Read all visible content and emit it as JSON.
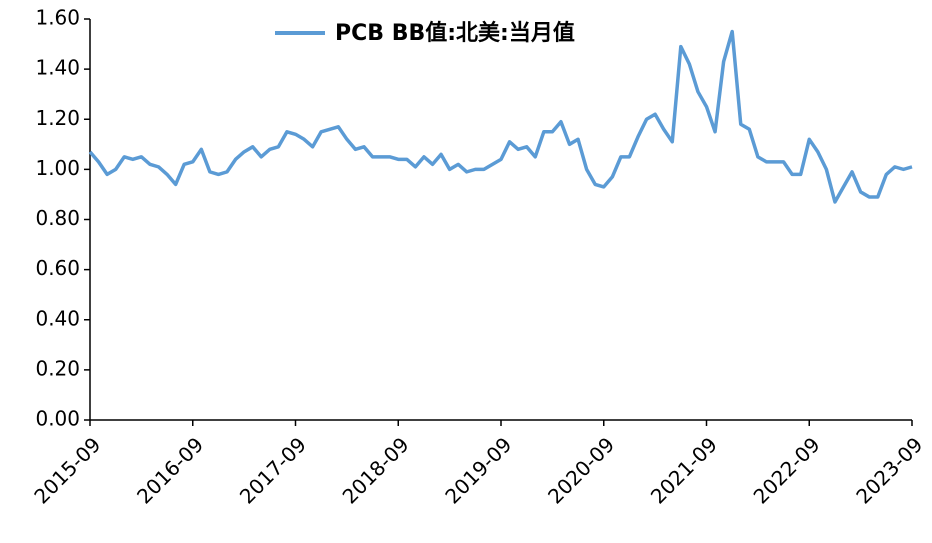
{
  "chart_data": {
    "type": "line",
    "categories": [
      "2015-09",
      null,
      null,
      null,
      null,
      null,
      null,
      null,
      null,
      null,
      null,
      null,
      "2016-09",
      null,
      null,
      null,
      null,
      null,
      null,
      null,
      null,
      null,
      null,
      null,
      "2017-09",
      null,
      null,
      null,
      null,
      null,
      null,
      null,
      null,
      null,
      null,
      null,
      "2018-09",
      null,
      null,
      null,
      null,
      null,
      null,
      null,
      null,
      null,
      null,
      null,
      "2019-09",
      null,
      null,
      null,
      null,
      null,
      null,
      null,
      null,
      null,
      null,
      null,
      "2020-09",
      null,
      null,
      null,
      null,
      null,
      null,
      null,
      null,
      null,
      null,
      null,
      "2021-09",
      null,
      null,
      null,
      null,
      null,
      null,
      null,
      null,
      null,
      null,
      null,
      "2022-09",
      null,
      null,
      null,
      null,
      null,
      null,
      null,
      null,
      null,
      null,
      null,
      "2023-09"
    ],
    "series": [
      {
        "name": "PCB BB值:北美:当月值",
        "color": "#5b9bd5",
        "values": [
          1.07,
          1.03,
          0.98,
          1.0,
          1.05,
          1.04,
          1.05,
          1.02,
          1.01,
          0.98,
          0.94,
          1.02,
          1.03,
          1.08,
          0.99,
          0.98,
          0.99,
          1.04,
          1.07,
          1.09,
          1.05,
          1.08,
          1.09,
          1.15,
          1.14,
          1.12,
          1.09,
          1.15,
          1.16,
          1.17,
          1.12,
          1.08,
          1.09,
          1.05,
          1.05,
          1.05,
          1.04,
          1.04,
          1.01,
          1.05,
          1.02,
          1.06,
          1.0,
          1.02,
          0.99,
          1.0,
          1.0,
          1.02,
          1.04,
          1.11,
          1.08,
          1.09,
          1.05,
          1.15,
          1.15,
          1.19,
          1.1,
          1.12,
          1.0,
          0.94,
          0.93,
          0.97,
          1.05,
          1.05,
          1.13,
          1.2,
          1.22,
          1.16,
          1.11,
          1.49,
          1.42,
          1.31,
          1.25,
          1.15,
          1.43,
          1.55,
          1.18,
          1.16,
          1.05,
          1.03,
          1.03,
          1.03,
          0.98,
          0.98,
          1.12,
          1.07,
          1.0,
          0.87,
          0.93,
          0.99,
          0.91,
          0.89,
          0.89,
          0.98,
          1.01,
          1.0,
          1.01
        ]
      }
    ],
    "ylim": [
      0,
      1.6
    ],
    "yticks": [
      {
        "value": 0,
        "label": "0.00"
      },
      {
        "value": 0.2,
        "label": "0.20"
      },
      {
        "value": 0.4,
        "label": "0.40"
      },
      {
        "value": 0.6,
        "label": "0.60"
      },
      {
        "value": 0.8,
        "label": "0.80"
      },
      {
        "value": 1,
        "label": "1.00"
      },
      {
        "value": 1.2,
        "label": "1.20"
      },
      {
        "value": 1.4,
        "label": "1.40"
      },
      {
        "value": 1.6,
        "label": "1.60"
      }
    ],
    "grid": false,
    "legend": "top"
  }
}
